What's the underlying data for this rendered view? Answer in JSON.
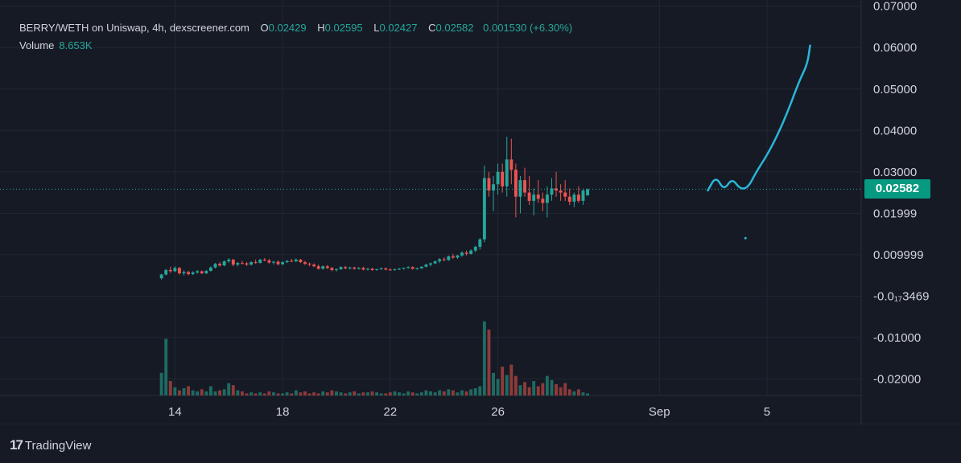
{
  "header": {
    "pair_title": "BERRY/WETH on Uniswap, 4h, dexscreener.com",
    "open_label": "O",
    "open_value": "0.02429",
    "high_label": "H",
    "high_value": "0.02595",
    "low_label": "L",
    "low_value": "0.02427",
    "close_label": "C",
    "close_value": "0.02582",
    "change_value": "0.001530 (+6.30%)",
    "volume_label": "Volume",
    "volume_value": "8.653K"
  },
  "current_price_badge": "0.02582",
  "branding": {
    "logo_text": "TradingView",
    "logo_mark": "17"
  },
  "colors": {
    "background": "#161a25",
    "grid": "#232733",
    "up": "#26a69a",
    "down": "#ef5350",
    "vol_up": "#1e6b63",
    "vol_down": "#8f3a3a",
    "drawing": "#29b6d8",
    "badge": "#089981",
    "axis_text": "#d1d4dc"
  },
  "chart_data": {
    "type": "candlestick",
    "title": "BERRY/WETH on Uniswap, 4h, dexscreener.com",
    "y_tick_labels": [
      "0.07000",
      "0.06000",
      "0.05000",
      "0.04000",
      "0.03000",
      "0.01999",
      "0.009999",
      "-0.0₁₇3469",
      "-0.01000",
      "-0.02000"
    ],
    "y_tick_values": [
      0.07,
      0.06,
      0.05,
      0.04,
      0.03,
      0.02,
      0.01,
      0.0,
      -0.01,
      -0.02
    ],
    "ylim": [
      -0.024,
      0.0715
    ],
    "x_tick_labels": [
      "14",
      "18",
      "22",
      "26",
      "Sep",
      "5"
    ],
    "x_tick_day_index": [
      14,
      18,
      22,
      26,
      32,
      36
    ],
    "xlim_day_index": [
      7.5,
      39.5
    ],
    "current_price": 0.02582,
    "candles_ohlc": [
      [
        0.0043,
        0.0054,
        0.004,
        0.0052
      ],
      [
        0.0052,
        0.0066,
        0.005,
        0.0063
      ],
      [
        0.0063,
        0.0071,
        0.0056,
        0.006
      ],
      [
        0.006,
        0.0072,
        0.0058,
        0.0068
      ],
      [
        0.0068,
        0.007,
        0.0052,
        0.0055
      ],
      [
        0.0055,
        0.0062,
        0.005,
        0.0058
      ],
      [
        0.0058,
        0.0061,
        0.005,
        0.0053
      ],
      [
        0.0053,
        0.006,
        0.0051,
        0.0057
      ],
      [
        0.0057,
        0.0063,
        0.0054,
        0.006
      ],
      [
        0.006,
        0.0062,
        0.0053,
        0.0055
      ],
      [
        0.0055,
        0.0063,
        0.0053,
        0.0061
      ],
      [
        0.0061,
        0.0072,
        0.0059,
        0.0069
      ],
      [
        0.0069,
        0.008,
        0.0067,
        0.0078
      ],
      [
        0.0078,
        0.0082,
        0.0071,
        0.0074
      ],
      [
        0.0074,
        0.0086,
        0.0072,
        0.0084
      ],
      [
        0.0084,
        0.0092,
        0.008,
        0.0088
      ],
      [
        0.0088,
        0.009,
        0.0072,
        0.0076
      ],
      [
        0.0076,
        0.0082,
        0.0072,
        0.008
      ],
      [
        0.008,
        0.0085,
        0.0076,
        0.0079
      ],
      [
        0.0079,
        0.0082,
        0.0073,
        0.0076
      ],
      [
        0.0076,
        0.0084,
        0.0074,
        0.0082
      ],
      [
        0.0082,
        0.0088,
        0.0078,
        0.008
      ],
      [
        0.008,
        0.009,
        0.0079,
        0.0088
      ],
      [
        0.0088,
        0.0092,
        0.0084,
        0.0086
      ],
      [
        0.0086,
        0.009,
        0.0078,
        0.0081
      ],
      [
        0.0081,
        0.0085,
        0.0076,
        0.0083
      ],
      [
        0.0083,
        0.0086,
        0.0074,
        0.0077
      ],
      [
        0.0077,
        0.0084,
        0.0075,
        0.0082
      ],
      [
        0.0082,
        0.0087,
        0.008,
        0.0085
      ],
      [
        0.0085,
        0.009,
        0.0082,
        0.0084
      ],
      [
        0.0084,
        0.0091,
        0.0082,
        0.0088
      ],
      [
        0.0088,
        0.009,
        0.008,
        0.0082
      ],
      [
        0.0082,
        0.0085,
        0.0075,
        0.0078
      ],
      [
        0.0078,
        0.0081,
        0.0072,
        0.0076
      ],
      [
        0.0076,
        0.0079,
        0.007,
        0.0072
      ],
      [
        0.0072,
        0.0076,
        0.0064,
        0.0066
      ],
      [
        0.0066,
        0.0074,
        0.0064,
        0.0072
      ],
      [
        0.0072,
        0.0075,
        0.0065,
        0.0068
      ],
      [
        0.0068,
        0.007,
        0.006,
        0.0063
      ],
      [
        0.0063,
        0.0067,
        0.0059,
        0.0065
      ],
      [
        0.0065,
        0.0072,
        0.0063,
        0.007
      ],
      [
        0.007,
        0.0073,
        0.0065,
        0.0067
      ],
      [
        0.0067,
        0.0071,
        0.0064,
        0.0069
      ],
      [
        0.0069,
        0.0071,
        0.0064,
        0.0066
      ],
      [
        0.0066,
        0.007,
        0.0064,
        0.0068
      ],
      [
        0.0068,
        0.0071,
        0.0062,
        0.0064
      ],
      [
        0.0064,
        0.0068,
        0.0062,
        0.0066
      ],
      [
        0.0066,
        0.0068,
        0.0061,
        0.0063
      ],
      [
        0.0063,
        0.0066,
        0.0061,
        0.0065
      ],
      [
        0.0065,
        0.0069,
        0.0063,
        0.0067
      ],
      [
        0.0067,
        0.0069,
        0.0062,
        0.0064
      ],
      [
        0.0064,
        0.0067,
        0.0061,
        0.0063
      ],
      [
        0.0063,
        0.0066,
        0.0061,
        0.0065
      ],
      [
        0.0065,
        0.0068,
        0.0063,
        0.0066
      ],
      [
        0.0066,
        0.0069,
        0.0064,
        0.0068
      ],
      [
        0.0068,
        0.0072,
        0.0066,
        0.007
      ],
      [
        0.007,
        0.0072,
        0.0064,
        0.0066
      ],
      [
        0.0066,
        0.0069,
        0.0064,
        0.0067
      ],
      [
        0.0067,
        0.0072,
        0.0066,
        0.0071
      ],
      [
        0.0071,
        0.0078,
        0.0069,
        0.0076
      ],
      [
        0.0076,
        0.0081,
        0.0072,
        0.0079
      ],
      [
        0.0079,
        0.0086,
        0.0077,
        0.0084
      ],
      [
        0.0084,
        0.0092,
        0.008,
        0.0089
      ],
      [
        0.0089,
        0.0094,
        0.0084,
        0.0087
      ],
      [
        0.0087,
        0.0098,
        0.0085,
        0.0096
      ],
      [
        0.0096,
        0.0102,
        0.009,
        0.0093
      ],
      [
        0.0093,
        0.01,
        0.009,
        0.0098
      ],
      [
        0.0098,
        0.0108,
        0.0095,
        0.0105
      ],
      [
        0.0105,
        0.011,
        0.0098,
        0.0102
      ],
      [
        0.0102,
        0.0113,
        0.01,
        0.011
      ],
      [
        0.011,
        0.0122,
        0.0106,
        0.0119
      ],
      [
        0.0119,
        0.014,
        0.0112,
        0.0137
      ],
      [
        0.0137,
        0.0315,
        0.013,
        0.0285
      ],
      [
        0.0285,
        0.03,
        0.024,
        0.0255
      ],
      [
        0.0255,
        0.029,
        0.0205,
        0.027
      ],
      [
        0.027,
        0.032,
        0.0245,
        0.03
      ],
      [
        0.03,
        0.032,
        0.025,
        0.0265
      ],
      [
        0.0265,
        0.0385,
        0.024,
        0.033
      ],
      [
        0.033,
        0.038,
        0.027,
        0.0305
      ],
      [
        0.0305,
        0.032,
        0.019,
        0.024
      ],
      [
        0.024,
        0.029,
        0.02,
        0.028
      ],
      [
        0.028,
        0.031,
        0.024,
        0.025
      ],
      [
        0.025,
        0.029,
        0.022,
        0.023
      ],
      [
        0.023,
        0.026,
        0.0195,
        0.0245
      ],
      [
        0.0245,
        0.028,
        0.0225,
        0.0235
      ],
      [
        0.0235,
        0.025,
        0.0205,
        0.0225
      ],
      [
        0.0225,
        0.0265,
        0.019,
        0.0245
      ],
      [
        0.0245,
        0.0285,
        0.023,
        0.026
      ],
      [
        0.026,
        0.03,
        0.024,
        0.0255
      ],
      [
        0.0255,
        0.027,
        0.023,
        0.025
      ],
      [
        0.025,
        0.028,
        0.023,
        0.024
      ],
      [
        0.024,
        0.026,
        0.022,
        0.0228
      ],
      [
        0.0228,
        0.025,
        0.0215,
        0.0245
      ],
      [
        0.0245,
        0.0265,
        0.0225,
        0.023
      ],
      [
        0.023,
        0.026,
        0.022,
        0.0255
      ],
      [
        0.0243,
        0.026,
        0.0243,
        0.0258
      ]
    ],
    "volume_relative": [
      0.22,
      0.55,
      0.14,
      0.08,
      0.05,
      0.07,
      0.09,
      0.05,
      0.04,
      0.06,
      0.04,
      0.09,
      0.04,
      0.05,
      0.06,
      0.12,
      0.1,
      0.05,
      0.04,
      0.02,
      0.03,
      0.02,
      0.03,
      0.02,
      0.04,
      0.03,
      0.02,
      0.02,
      0.03,
      0.02,
      0.05,
      0.03,
      0.04,
      0.02,
      0.03,
      0.02,
      0.04,
      0.03,
      0.05,
      0.04,
      0.03,
      0.02,
      0.03,
      0.04,
      0.02,
      0.03,
      0.03,
      0.04,
      0.03,
      0.02,
      0.02,
      0.03,
      0.04,
      0.03,
      0.02,
      0.04,
      0.03,
      0.02,
      0.03,
      0.05,
      0.04,
      0.03,
      0.05,
      0.04,
      0.06,
      0.05,
      0.03,
      0.05,
      0.04,
      0.06,
      0.07,
      0.09,
      0.72,
      0.64,
      0.22,
      0.16,
      0.28,
      0.2,
      0.3,
      0.19,
      0.1,
      0.13,
      0.08,
      0.14,
      0.09,
      0.12,
      0.19,
      0.15,
      0.11,
      0.08,
      0.12,
      0.06,
      0.04,
      0.06,
      0.03,
      0.02
    ],
    "drawing_path_note": "freehand price projection",
    "drawing_points": [
      [
        33.8,
        0.0255
      ],
      [
        34.1,
        0.029
      ],
      [
        34.4,
        0.0255
      ],
      [
        34.7,
        0.0285
      ],
      [
        35.0,
        0.0258
      ],
      [
        35.3,
        0.0262
      ],
      [
        35.6,
        0.03
      ],
      [
        36.0,
        0.034
      ],
      [
        36.4,
        0.039
      ],
      [
        36.8,
        0.045
      ],
      [
        37.2,
        0.052
      ],
      [
        37.5,
        0.056
      ],
      [
        37.6,
        0.0605
      ]
    ],
    "stray_dot": [
      35.2,
      0.014
    ]
  }
}
